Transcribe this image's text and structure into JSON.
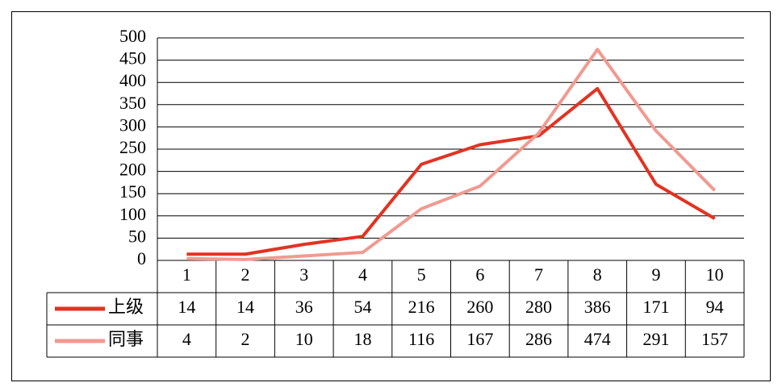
{
  "chart_data": {
    "type": "line",
    "categories": [
      "1",
      "2",
      "3",
      "4",
      "5",
      "6",
      "7",
      "8",
      "9",
      "10"
    ],
    "series": [
      {
        "name": "上级",
        "color": "#e23322",
        "values": [
          14,
          14,
          36,
          54,
          216,
          260,
          280,
          386,
          171,
          94
        ]
      },
      {
        "name": "同事",
        "color": "#f19a90",
        "values": [
          4,
          2,
          10,
          18,
          116,
          167,
          286,
          474,
          291,
          157
        ]
      }
    ],
    "ylim": [
      0,
      500
    ],
    "yticks": [
      0,
      50,
      100,
      150,
      200,
      250,
      300,
      350,
      400,
      450,
      500
    ],
    "grid": true
  }
}
